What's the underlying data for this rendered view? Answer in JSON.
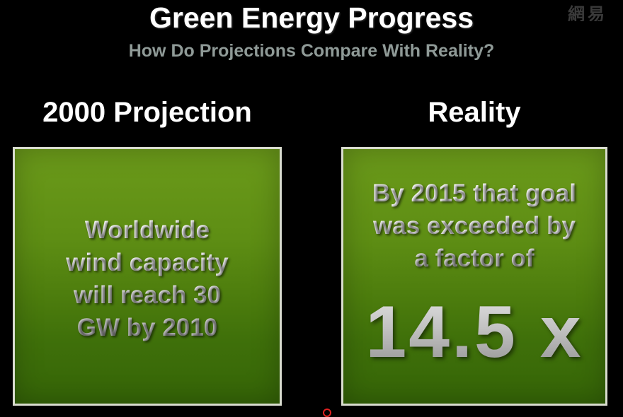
{
  "watermark": "網易",
  "header": {
    "title": "Green Energy Progress",
    "subtitle": "How Do Projections Compare With Reality?"
  },
  "columns": [
    {
      "heading": "2000 Projection",
      "lines": [
        "Worldwide",
        "wind capacity",
        "will reach 30",
        "GW by 2010"
      ]
    },
    {
      "heading": "Reality",
      "lines": [
        "By 2015 that goal",
        "was exceeded by",
        "a factor of"
      ],
      "factor": "14.5 x"
    }
  ],
  "colors": {
    "background": "#000000",
    "panel_green": "#5e8e14",
    "panel_border": "#d9dccf",
    "subtitle_gray": "#8f9a97"
  }
}
